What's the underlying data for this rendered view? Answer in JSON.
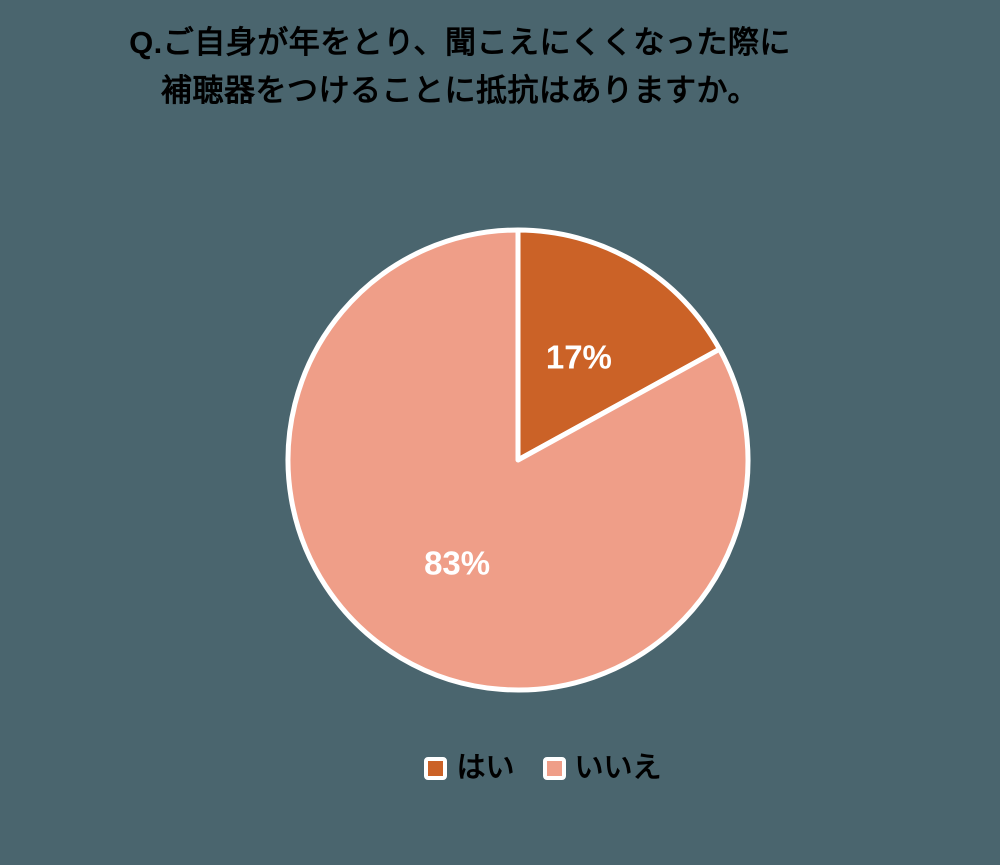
{
  "page": {
    "background_color": "#4A656E"
  },
  "chart_data": {
    "type": "pie",
    "title_line1": "Q.ご自身が年をとり、聞こえにくくなった際に",
    "title_line2": "補聴器をつけることに抵抗はありますか。",
    "categories": [
      "はい",
      "いいえ"
    ],
    "values": [
      17,
      83
    ],
    "slice_labels": [
      "17%",
      "83%"
    ],
    "colors": [
      "#CB6227",
      "#EF9E88"
    ],
    "slice_label_color": "#FFFFFF",
    "slice_stroke_color": "#FFFFFF",
    "start_angle": "top",
    "direction": "clockwise",
    "legend_position": "bottom"
  }
}
